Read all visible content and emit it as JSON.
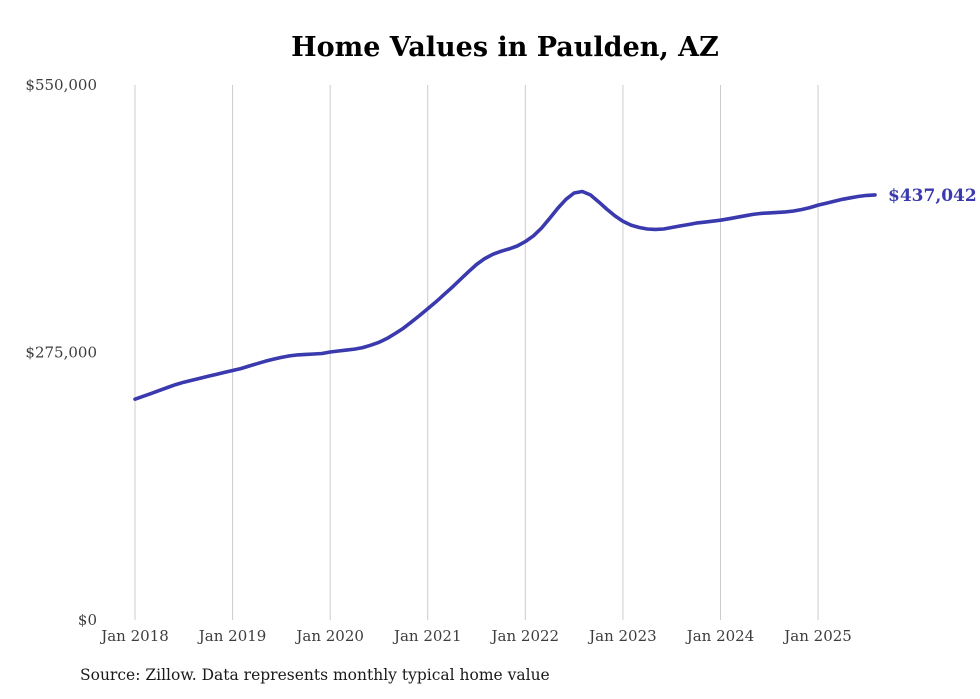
{
  "title": "Home Values in Paulden, AZ",
  "source_note": "Source: Zillow. Data represents monthly typical home value",
  "colors": {
    "line": "#3a3aae",
    "grid": "#cccccc",
    "axis_text": "#3d3d3d",
    "title": "#000000"
  },
  "chart_data": {
    "type": "line",
    "title": "Home Values in Paulden, AZ",
    "xlabel": "",
    "ylabel": "",
    "ylim": [
      0,
      550000
    ],
    "grid": "vertical-only",
    "legend_position": "none",
    "final_value": 437042,
    "final_value_label": "$437,042",
    "y_ticks": [
      {
        "value": 0,
        "label": "$0"
      },
      {
        "value": 275000,
        "label": "$275,000"
      },
      {
        "value": 550000,
        "label": "$550,000"
      }
    ],
    "x_tick_labels": [
      "Jan 2018",
      "Jan 2019",
      "Jan 2020",
      "Jan 2021",
      "Jan 2022",
      "Jan 2023",
      "Jan 2024",
      "Jan 2025"
    ],
    "x_tick_month_indices": [
      0,
      12,
      24,
      36,
      48,
      60,
      72,
      84
    ],
    "months": [
      "2018-01",
      "2018-02",
      "2018-03",
      "2018-04",
      "2018-05",
      "2018-06",
      "2018-07",
      "2018-08",
      "2018-09",
      "2018-10",
      "2018-11",
      "2018-12",
      "2019-01",
      "2019-02",
      "2019-03",
      "2019-04",
      "2019-05",
      "2019-06",
      "2019-07",
      "2019-08",
      "2019-09",
      "2019-10",
      "2019-11",
      "2019-12",
      "2020-01",
      "2020-02",
      "2020-03",
      "2020-04",
      "2020-05",
      "2020-06",
      "2020-07",
      "2020-08",
      "2020-09",
      "2020-10",
      "2020-11",
      "2020-12",
      "2021-01",
      "2021-02",
      "2021-03",
      "2021-04",
      "2021-05",
      "2021-06",
      "2021-07",
      "2021-08",
      "2021-09",
      "2021-10",
      "2021-11",
      "2021-12",
      "2022-01",
      "2022-02",
      "2022-03",
      "2022-04",
      "2022-05",
      "2022-06",
      "2022-07",
      "2022-08",
      "2022-09",
      "2022-10",
      "2022-11",
      "2022-12",
      "2023-01",
      "2023-02",
      "2023-03",
      "2023-04",
      "2023-05",
      "2023-06",
      "2023-07",
      "2023-08",
      "2023-09",
      "2023-10",
      "2023-11",
      "2023-12",
      "2024-01",
      "2024-02",
      "2024-03",
      "2024-04",
      "2024-05",
      "2024-06",
      "2024-07",
      "2024-08",
      "2024-09",
      "2024-10",
      "2024-11",
      "2024-12",
      "2025-01",
      "2025-02",
      "2025-03",
      "2025-04",
      "2025-05",
      "2025-06",
      "2025-07",
      "2025-08"
    ],
    "values": [
      227000,
      230000,
      233000,
      236000,
      239000,
      242000,
      244500,
      246500,
      248500,
      250500,
      252500,
      254500,
      256500,
      258500,
      261000,
      263500,
      266000,
      268000,
      270000,
      271500,
      272500,
      273000,
      273500,
      274000,
      275500,
      276500,
      277500,
      278500,
      280000,
      282500,
      285500,
      289500,
      294500,
      300000,
      306500,
      313000,
      320000,
      327000,
      334500,
      342000,
      350000,
      358000,
      365500,
      371500,
      376000,
      379000,
      381500,
      384500,
      389000,
      395000,
      403000,
      413000,
      423500,
      432500,
      439000,
      440500,
      437000,
      430000,
      422500,
      415500,
      410000,
      406000,
      403500,
      402000,
      401500,
      402000,
      403500,
      405000,
      406500,
      408000,
      409000,
      410000,
      411000,
      412500,
      414000,
      415500,
      417000,
      418000,
      418500,
      419000,
      419500,
      420500,
      422000,
      424000,
      426500,
      428500,
      430500,
      432500,
      434000,
      435500,
      436500,
      437042
    ]
  }
}
